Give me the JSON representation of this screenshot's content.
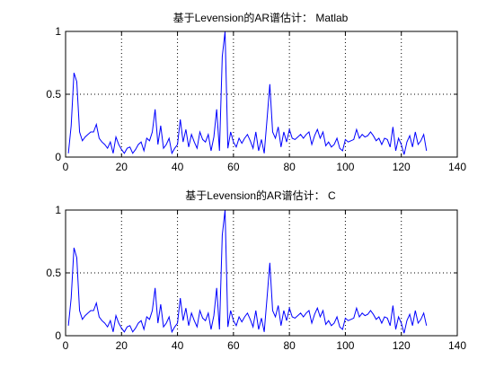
{
  "chart_data": [
    {
      "type": "line",
      "title": "基于Levension的AR谱估计： Matlab",
      "xlabel": "",
      "ylabel": "",
      "xlim": [
        0,
        140
      ],
      "ylim": [
        0,
        1
      ],
      "xticks": [
        0,
        20,
        40,
        60,
        80,
        100,
        120,
        140
      ],
      "yticks": [
        0,
        0.5,
        1
      ],
      "ytick_labels": [
        "0",
        "0.5",
        "1"
      ],
      "grid": true,
      "line_color": "#0000ff",
      "x": [
        1,
        2,
        3,
        4,
        5,
        6,
        7,
        8,
        9,
        10,
        11,
        12,
        13,
        14,
        15,
        16,
        17,
        18,
        19,
        20,
        21,
        22,
        23,
        24,
        25,
        26,
        27,
        28,
        29,
        30,
        31,
        32,
        33,
        34,
        35,
        36,
        37,
        38,
        39,
        40,
        41,
        42,
        43,
        44,
        45,
        46,
        47,
        48,
        49,
        50,
        51,
        52,
        53,
        54,
        55,
        56,
        57,
        58,
        59,
        60,
        61,
        62,
        63,
        64,
        65,
        66,
        67,
        68,
        69,
        70,
        71,
        72,
        73,
        74,
        75,
        76,
        77,
        78,
        79,
        80,
        81,
        82,
        83,
        84,
        85,
        86,
        87,
        88,
        89,
        90,
        91,
        92,
        93,
        94,
        95,
        96,
        97,
        98,
        99,
        100,
        101,
        102,
        103,
        104,
        105,
        106,
        107,
        108,
        109,
        110,
        111,
        112,
        113,
        114,
        115,
        116,
        117,
        118,
        119,
        120,
        121,
        122,
        123,
        124,
        125,
        126,
        127,
        128,
        129
      ],
      "y": [
        0.03,
        0.25,
        0.67,
        0.6,
        0.2,
        0.13,
        0.16,
        0.18,
        0.2,
        0.2,
        0.26,
        0.15,
        0.12,
        0.1,
        0.07,
        0.12,
        0.03,
        0.16,
        0.1,
        0.06,
        0.03,
        0.07,
        0.08,
        0.03,
        0.06,
        0.1,
        0.12,
        0.05,
        0.15,
        0.13,
        0.2,
        0.38,
        0.1,
        0.25,
        0.07,
        0.1,
        0.15,
        0.03,
        0.07,
        0.1,
        0.3,
        0.12,
        0.22,
        0.08,
        0.18,
        0.12,
        0.07,
        0.2,
        0.14,
        0.12,
        0.18,
        0.05,
        0.16,
        0.38,
        0.05,
        0.8,
        1.0,
        0.07,
        0.2,
        0.12,
        0.08,
        0.15,
        0.11,
        0.15,
        0.18,
        0.13,
        0.07,
        0.2,
        0.05,
        0.14,
        0.03,
        0.3,
        0.58,
        0.2,
        0.15,
        0.24,
        0.08,
        0.2,
        0.12,
        0.22,
        0.15,
        0.14,
        0.16,
        0.18,
        0.15,
        0.18,
        0.2,
        0.1,
        0.17,
        0.22,
        0.15,
        0.2,
        0.09,
        0.12,
        0.08,
        0.1,
        0.15,
        0.07,
        0.05,
        0.14,
        0.12,
        0.13,
        0.14,
        0.22,
        0.15,
        0.18,
        0.16,
        0.17,
        0.2,
        0.17,
        0.13,
        0.15,
        0.1,
        0.15,
        0.14,
        0.08,
        0.24,
        0.05,
        0.15,
        0.1,
        0.02,
        0.12,
        0.17,
        0.08,
        0.2,
        0.1,
        0.13,
        0.18,
        0.05
      ]
    },
    {
      "type": "line",
      "title": "基于Levension的AR谱估计： C",
      "xlabel": "",
      "ylabel": "",
      "xlim": [
        0,
        140
      ],
      "ylim": [
        0,
        1
      ],
      "xticks": [
        0,
        20,
        40,
        60,
        80,
        100,
        120,
        140
      ],
      "yticks": [
        0,
        0.5,
        1
      ],
      "ytick_labels": [
        "0",
        "0.5",
        "1"
      ],
      "grid": true,
      "line_color": "#0000ff",
      "x": [
        1,
        2,
        3,
        4,
        5,
        6,
        7,
        8,
        9,
        10,
        11,
        12,
        13,
        14,
        15,
        16,
        17,
        18,
        19,
        20,
        21,
        22,
        23,
        24,
        25,
        26,
        27,
        28,
        29,
        30,
        31,
        32,
        33,
        34,
        35,
        36,
        37,
        38,
        39,
        40,
        41,
        42,
        43,
        44,
        45,
        46,
        47,
        48,
        49,
        50,
        51,
        52,
        53,
        54,
        55,
        56,
        57,
        58,
        59,
        60,
        61,
        62,
        63,
        64,
        65,
        66,
        67,
        68,
        69,
        70,
        71,
        72,
        73,
        74,
        75,
        76,
        77,
        78,
        79,
        80,
        81,
        82,
        83,
        84,
        85,
        86,
        87,
        88,
        89,
        90,
        91,
        92,
        93,
        94,
        95,
        96,
        97,
        98,
        99,
        100,
        101,
        102,
        103,
        104,
        105,
        106,
        107,
        108,
        109,
        110,
        111,
        112,
        113,
        114,
        115,
        116,
        117,
        118,
        119,
        120,
        121,
        122,
        123,
        124,
        125,
        126,
        127,
        128,
        129
      ],
      "y": [
        0.08,
        0.3,
        0.7,
        0.62,
        0.2,
        0.13,
        0.16,
        0.18,
        0.2,
        0.2,
        0.26,
        0.15,
        0.12,
        0.1,
        0.07,
        0.12,
        0.03,
        0.16,
        0.1,
        0.06,
        0.03,
        0.07,
        0.08,
        0.03,
        0.06,
        0.1,
        0.12,
        0.05,
        0.15,
        0.13,
        0.2,
        0.38,
        0.1,
        0.25,
        0.07,
        0.1,
        0.15,
        0.03,
        0.07,
        0.1,
        0.3,
        0.12,
        0.22,
        0.08,
        0.18,
        0.12,
        0.07,
        0.2,
        0.14,
        0.12,
        0.18,
        0.05,
        0.16,
        0.38,
        0.05,
        0.8,
        1.0,
        0.07,
        0.2,
        0.12,
        0.08,
        0.15,
        0.11,
        0.15,
        0.18,
        0.13,
        0.07,
        0.2,
        0.05,
        0.14,
        0.03,
        0.3,
        0.58,
        0.2,
        0.15,
        0.24,
        0.08,
        0.2,
        0.12,
        0.22,
        0.15,
        0.14,
        0.16,
        0.18,
        0.15,
        0.18,
        0.2,
        0.1,
        0.17,
        0.22,
        0.15,
        0.2,
        0.09,
        0.12,
        0.08,
        0.1,
        0.15,
        0.07,
        0.05,
        0.14,
        0.12,
        0.13,
        0.14,
        0.22,
        0.15,
        0.18,
        0.16,
        0.17,
        0.2,
        0.17,
        0.13,
        0.15,
        0.1,
        0.15,
        0.14,
        0.08,
        0.24,
        0.05,
        0.15,
        0.1,
        0.02,
        0.12,
        0.17,
        0.08,
        0.2,
        0.1,
        0.13,
        0.18,
        0.08
      ]
    }
  ]
}
